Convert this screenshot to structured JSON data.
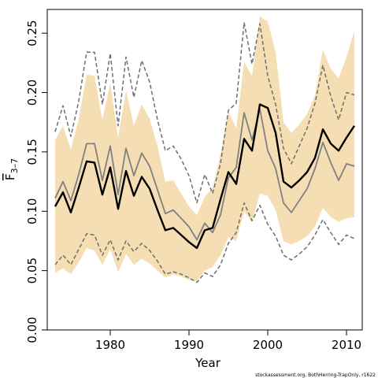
{
  "chart_data": {
    "type": "line",
    "xlabel": "Year",
    "ylabel_main": "F",
    "ylabel_sub": "3–7",
    "credit": "stockassessment.org, BothHerring-TrapOnly, r1622",
    "xlim": [
      1972,
      2012
    ],
    "ylim": [
      0,
      0.27
    ],
    "x_ticks": [
      1980,
      1990,
      2000,
      2010
    ],
    "y_ticks": [
      0.0,
      0.05,
      0.1,
      0.15,
      0.2,
      0.25
    ],
    "y_tick_labels": [
      "0.00",
      "0.05",
      "0.10",
      "0.15",
      "0.20",
      "0.25"
    ],
    "colors": {
      "band": "#f5deb3",
      "estimate": "#000000",
      "secondary": "#808080",
      "secondary_ci": "#6e6e6e"
    },
    "x": [
      1973,
      1974,
      1975,
      1976,
      1977,
      1978,
      1979,
      1980,
      1981,
      1982,
      1983,
      1984,
      1985,
      1986,
      1987,
      1988,
      1989,
      1990,
      1991,
      1992,
      1993,
      1994,
      1995,
      1996,
      1997,
      1998,
      1999,
      2000,
      2001,
      2002,
      2003,
      2004,
      2005,
      2006,
      2007,
      2008,
      2009,
      2010,
      2011
    ],
    "series": [
      {
        "role": "band_upper",
        "values": [
          0.16,
          0.172,
          0.152,
          0.178,
          0.215,
          0.214,
          0.177,
          0.208,
          0.162,
          0.202,
          0.172,
          0.19,
          0.178,
          0.155,
          0.125,
          0.126,
          0.115,
          0.104,
          0.097,
          0.112,
          0.12,
          0.148,
          0.184,
          0.17,
          0.226,
          0.214,
          0.264,
          0.26,
          0.234,
          0.175,
          0.166,
          0.173,
          0.182,
          0.198,
          0.236,
          0.22,
          0.212,
          0.23,
          0.252
        ]
      },
      {
        "role": "band_lower",
        "values": [
          0.048,
          0.052,
          0.047,
          0.057,
          0.069,
          0.067,
          0.055,
          0.068,
          0.049,
          0.064,
          0.055,
          0.06,
          0.056,
          0.05,
          0.044,
          0.047,
          0.045,
          0.042,
          0.041,
          0.05,
          0.053,
          0.063,
          0.078,
          0.075,
          0.1,
          0.091,
          0.115,
          0.113,
          0.101,
          0.075,
          0.072,
          0.075,
          0.079,
          0.087,
          0.103,
          0.095,
          0.091,
          0.094,
          0.095
        ]
      },
      {
        "role": "estimate",
        "values": [
          0.104,
          0.116,
          0.099,
          0.12,
          0.142,
          0.141,
          0.114,
          0.137,
          0.102,
          0.134,
          0.113,
          0.129,
          0.119,
          0.101,
          0.084,
          0.086,
          0.08,
          0.074,
          0.069,
          0.084,
          0.086,
          0.11,
          0.133,
          0.123,
          0.161,
          0.151,
          0.19,
          0.187,
          0.166,
          0.125,
          0.12,
          0.126,
          0.133,
          0.145,
          0.169,
          0.157,
          0.151,
          0.162,
          0.172
        ]
      },
      {
        "role": "secondary",
        "values": [
          0.111,
          0.125,
          0.109,
          0.131,
          0.157,
          0.157,
          0.126,
          0.155,
          0.114,
          0.153,
          0.13,
          0.149,
          0.138,
          0.118,
          0.098,
          0.101,
          0.094,
          0.087,
          0.076,
          0.09,
          0.082,
          0.097,
          0.128,
          0.137,
          0.183,
          0.16,
          0.186,
          0.151,
          0.136,
          0.107,
          0.099,
          0.109,
          0.119,
          0.136,
          0.158,
          0.141,
          0.126,
          0.14,
          0.138
        ]
      },
      {
        "role": "secondary_upper",
        "values": [
          0.167,
          0.189,
          0.163,
          0.193,
          0.234,
          0.234,
          0.19,
          0.233,
          0.172,
          0.23,
          0.196,
          0.227,
          0.209,
          0.177,
          0.151,
          0.155,
          0.144,
          0.13,
          0.107,
          0.131,
          0.115,
          0.14,
          0.185,
          0.191,
          0.259,
          0.224,
          0.258,
          0.214,
          0.19,
          0.153,
          0.14,
          0.155,
          0.17,
          0.191,
          0.223,
          0.197,
          0.177,
          0.2,
          0.198
        ]
      },
      {
        "role": "secondary_lower",
        "values": [
          0.055,
          0.063,
          0.055,
          0.068,
          0.081,
          0.08,
          0.063,
          0.076,
          0.059,
          0.075,
          0.066,
          0.073,
          0.067,
          0.058,
          0.047,
          0.049,
          0.047,
          0.044,
          0.04,
          0.048,
          0.045,
          0.055,
          0.073,
          0.082,
          0.107,
          0.092,
          0.105,
          0.089,
          0.079,
          0.063,
          0.059,
          0.064,
          0.07,
          0.08,
          0.093,
          0.082,
          0.072,
          0.08,
          0.077
        ]
      }
    ]
  }
}
